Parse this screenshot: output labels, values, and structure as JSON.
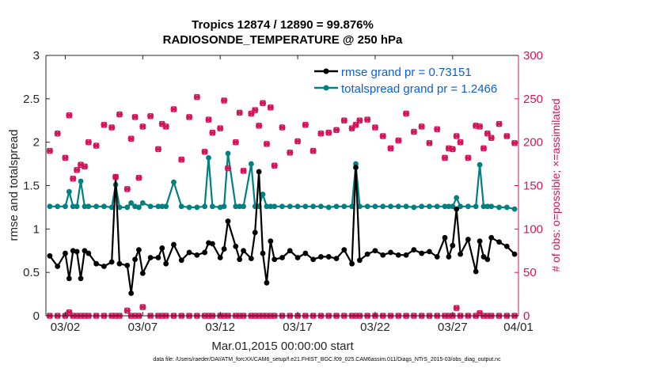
{
  "chart_data": {
    "type": "line",
    "title": "Tropics 12874 / 12890 = 99.876%",
    "subtitle": "RADIOSONDE_TEMPERATURE @ 250 hPa",
    "xlabel": "Mar.01,2015 00:00:00 start",
    "ylabel": "rmse and totalspread",
    "ylabel_right": "# of obs: o=possible; ×=assimilated",
    "xlim": [
      0.5,
      31.0
    ],
    "ylim": [
      0,
      3
    ],
    "ylim_right": [
      0,
      300
    ],
    "x_ticks": [
      1.75,
      6.75,
      11.75,
      16.75,
      21.75,
      26.75,
      31.75
    ],
    "x_tick_labels": [
      "03/02",
      "03/07",
      "03/12",
      "03/17",
      "03/22",
      "03/27",
      "04/01"
    ],
    "y_ticks": [
      0,
      0.5,
      1,
      1.5,
      2,
      2.5,
      3
    ],
    "y_tick_labels": [
      "0",
      "0.5",
      "1",
      "1.5",
      "2",
      "2.5",
      "3"
    ],
    "y_ticks_right": [
      0,
      50,
      100,
      150,
      200,
      250,
      300
    ],
    "y_tick_labels_right": [
      "0",
      "50",
      "100",
      "150",
      "200",
      "250",
      "300"
    ],
    "legend": [
      "rmse grand pr = 0.73151",
      "totalspread grand pr = 1.2466"
    ],
    "footnote": "data file: /Users/raeder/DAI/ATM_forcXX/CAM6_setup/f.e21.FHIST_BGC.f09_025.CAM6assim.011/Diags_NTrS_2015-03/obs_diag_output.nc",
    "colors": {
      "rmse": "#000000",
      "spread": "#008080",
      "obs": "#d4145a"
    },
    "x": [
      0.75,
      1.25,
      1.75,
      2.0,
      2.25,
      2.5,
      2.75,
      3.0,
      3.25,
      3.75,
      4.25,
      4.75,
      5.0,
      5.25,
      5.75,
      6.0,
      6.25,
      6.5,
      6.75,
      7.25,
      7.75,
      8.0,
      8.25,
      8.75,
      9.25,
      9.75,
      10.25,
      10.75,
      11.0,
      11.25,
      11.75,
      12.0,
      12.25,
      12.75,
      13.0,
      13.25,
      13.75,
      14.0,
      14.25,
      14.5,
      14.75,
      15.0,
      15.25,
      15.75,
      16.25,
      16.75,
      17.25,
      17.75,
      18.25,
      18.75,
      19.25,
      19.75,
      20.25,
      20.5,
      20.75,
      21.25,
      21.75,
      22.25,
      22.75,
      23.25,
      23.75,
      24.25,
      24.75,
      25.25,
      25.75,
      26.25,
      26.5,
      26.75,
      27.0,
      27.25,
      27.75,
      28.25,
      28.5,
      28.75,
      29.0,
      29.25,
      29.75,
      30.25,
      30.75
    ],
    "series": [
      {
        "name": "rmse",
        "values": [
          0.69,
          0.57,
          0.72,
          0.43,
          0.75,
          0.74,
          0.43,
          0.75,
          0.72,
          0.6,
          0.57,
          0.62,
          1.6,
          0.6,
          0.58,
          0.26,
          0.65,
          0.76,
          0.49,
          0.67,
          0.67,
          0.78,
          0.6,
          0.82,
          0.64,
          0.73,
          0.7,
          0.73,
          0.84,
          0.83,
          0.67,
          0.77,
          1.09,
          0.8,
          0.65,
          0.75,
          0.66,
          0.96,
          1.66,
          0.72,
          0.38,
          0.86,
          0.65,
          0.67,
          0.75,
          0.67,
          0.72,
          0.65,
          0.68,
          0.68,
          0.66,
          0.76,
          0.6,
          1.71,
          0.64,
          0.71,
          0.75,
          0.7,
          0.73,
          0.7,
          0.7,
          0.76,
          0.72,
          0.74,
          0.68,
          0.9,
          0.68,
          0.81,
          1.23,
          0.71,
          0.88,
          0.51,
          0.86,
          0.68,
          0.65,
          0.9,
          0.85,
          0.8,
          0.71
        ]
      },
      {
        "name": "totalspread",
        "values": [
          1.26,
          1.26,
          1.26,
          1.43,
          1.26,
          1.26,
          1.55,
          1.26,
          1.26,
          1.26,
          1.26,
          1.25,
          1.51,
          1.25,
          1.25,
          1.3,
          1.26,
          1.25,
          1.3,
          1.26,
          1.26,
          1.26,
          1.26,
          1.54,
          1.26,
          1.25,
          1.25,
          1.26,
          1.82,
          1.26,
          1.25,
          1.26,
          1.87,
          1.26,
          1.26,
          1.26,
          1.75,
          1.26,
          1.26,
          1.4,
          1.26,
          1.26,
          1.26,
          1.26,
          1.26,
          1.26,
          1.26,
          1.26,
          1.26,
          1.25,
          1.26,
          1.26,
          1.26,
          1.75,
          1.26,
          1.26,
          1.26,
          1.26,
          1.26,
          1.26,
          1.26,
          1.25,
          1.26,
          1.26,
          1.26,
          1.26,
          1.26,
          1.26,
          1.36,
          1.26,
          1.26,
          1.26,
          1.74,
          1.26,
          1.26,
          1.26,
          1.25,
          1.25,
          1.23
        ]
      },
      {
        "name": "obs_possible",
        "values": [
          190,
          210,
          182,
          231,
          158,
          168,
          174,
          172,
          200,
          196,
          220,
          217,
          160,
          232,
          146,
          204,
          229,
          159,
          218,
          230,
          192,
          221,
          218,
          238,
          180,
          229,
          252,
          189,
          226,
          211,
          216,
          248,
          170,
          200,
          234,
          167,
          233,
          237,
          219,
          245,
          198,
          240,
          173,
          217,
          188,
          201,
          220,
          190,
          210,
          211,
          214,
          225,
          216,
          220,
          225,
          226,
          217,
          207,
          193,
          202,
          233,
          212,
          218,
          199,
          215,
          182,
          193,
          192,
          207,
          200,
          182,
          219,
          218,
          193,
          210,
          205,
          221,
          207,
          199
        ]
      },
      {
        "name": "obs_assimilated",
        "values": [
          0,
          0,
          0,
          4,
          0,
          0,
          0,
          0,
          0,
          0,
          0,
          0,
          0,
          0,
          6,
          0,
          0,
          0,
          10,
          0,
          0,
          0,
          0,
          0,
          0,
          0,
          0,
          0,
          0,
          0,
          0,
          0,
          0,
          0,
          0,
          0,
          0,
          0,
          0,
          0,
          0,
          0,
          0,
          0,
          0,
          0,
          0,
          0,
          0,
          0,
          0,
          0,
          0,
          0,
          0,
          0,
          0,
          0,
          0,
          0,
          0,
          0,
          0,
          0,
          0,
          0,
          0,
          0,
          9,
          0,
          0,
          0,
          3,
          0,
          0,
          0,
          0,
          0,
          0
        ]
      }
    ]
  }
}
